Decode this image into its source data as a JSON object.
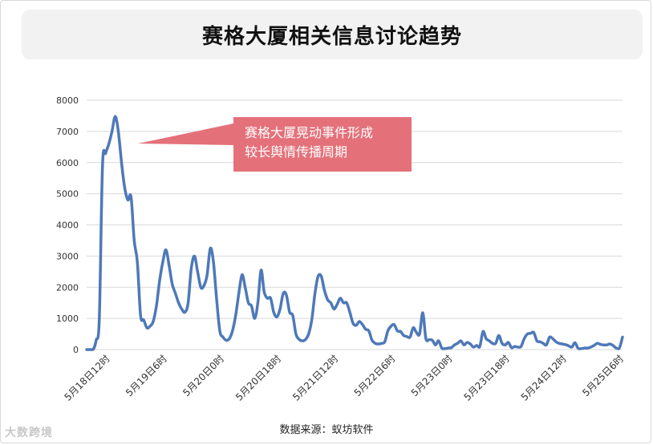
{
  "title": "赛格大厦相关信息讨论趋势",
  "callout": {
    "line1": "赛格大厦晃动事件形成",
    "line2": "较长舆情传播周期"
  },
  "source": "数据来源：蚁坊软件",
  "watermark": "大数跨境",
  "colors": {
    "line": "#4e79b8",
    "callout": "#e4717a",
    "grid": "#d9d9d9",
    "title_bg": "#f2f2f2"
  },
  "chart_data": {
    "type": "line",
    "title": "赛格大厦相关信息讨论趋势",
    "xlabel": "",
    "ylabel": "",
    "ylim": [
      0,
      8000
    ],
    "yticks": [
      0,
      1000,
      2000,
      3000,
      4000,
      5000,
      6000,
      7000,
      8000
    ],
    "grid": true,
    "legend": "none",
    "x_range_hours": "5月18日6时 – 5月25日21时",
    "xtick_labels": [
      "5月18日12时",
      "5月19日6时",
      "5月20日0时",
      "5月20日18时",
      "5月21日12时",
      "5月22日6时",
      "5月23日0时",
      "5月23日18时",
      "5月24日12时",
      "5月25日6时"
    ],
    "series": [
      {
        "values": [
          [
            0,
            0
          ],
          [
            2,
            0
          ],
          [
            3,
            300
          ],
          [
            4,
            1000
          ],
          [
            5,
            5900
          ],
          [
            6,
            6300
          ],
          [
            7,
            6600
          ],
          [
            8,
            7000
          ],
          [
            9,
            7480
          ],
          [
            10,
            7000
          ],
          [
            11,
            6000
          ],
          [
            12,
            5200
          ],
          [
            13,
            4800
          ],
          [
            14,
            4900
          ],
          [
            15,
            3500
          ],
          [
            16,
            2800
          ],
          [
            17,
            1100
          ],
          [
            18,
            950
          ],
          [
            19,
            700
          ],
          [
            20,
            750
          ],
          [
            21,
            900
          ],
          [
            22,
            1400
          ],
          [
            23,
            2200
          ],
          [
            24,
            2800
          ],
          [
            25,
            3200
          ],
          [
            26,
            2700
          ],
          [
            27,
            2100
          ],
          [
            28,
            1800
          ],
          [
            29,
            1500
          ],
          [
            30,
            1300
          ],
          [
            31,
            1200
          ],
          [
            32,
            1500
          ],
          [
            33,
            2600
          ],
          [
            34,
            3000
          ],
          [
            35,
            2500
          ],
          [
            36,
            2000
          ],
          [
            37,
            2050
          ],
          [
            38,
            2400
          ],
          [
            39,
            3250
          ],
          [
            40,
            2800
          ],
          [
            41,
            1600
          ],
          [
            42,
            600
          ],
          [
            43,
            400
          ],
          [
            44,
            300
          ],
          [
            45,
            350
          ],
          [
            46,
            600
          ],
          [
            47,
            1100
          ],
          [
            48,
            1800
          ],
          [
            49,
            2400
          ],
          [
            50,
            2000
          ],
          [
            51,
            1500
          ],
          [
            52,
            1400
          ],
          [
            53,
            1000
          ],
          [
            54,
            1500
          ],
          [
            55,
            2550
          ],
          [
            56,
            1850
          ],
          [
            57,
            1650
          ],
          [
            58,
            1650
          ],
          [
            59,
            1200
          ],
          [
            60,
            1050
          ],
          [
            61,
            1300
          ],
          [
            62,
            1800
          ],
          [
            63,
            1750
          ],
          [
            64,
            1200
          ],
          [
            65,
            1100
          ],
          [
            66,
            500
          ],
          [
            67,
            330
          ],
          [
            68,
            280
          ],
          [
            69,
            320
          ],
          [
            70,
            500
          ],
          [
            71,
            950
          ],
          [
            72,
            1800
          ],
          [
            73,
            2350
          ],
          [
            74,
            2350
          ],
          [
            75,
            1900
          ],
          [
            76,
            1600
          ],
          [
            77,
            1500
          ],
          [
            78,
            1300
          ],
          [
            79,
            1450
          ],
          [
            80,
            1650
          ],
          [
            81,
            1500
          ],
          [
            82,
            1500
          ],
          [
            83,
            1200
          ],
          [
            84,
            850
          ],
          [
            85,
            780
          ],
          [
            86,
            900
          ],
          [
            87,
            800
          ],
          [
            88,
            650
          ],
          [
            89,
            600
          ],
          [
            90,
            300
          ],
          [
            91,
            200
          ],
          [
            92,
            180
          ],
          [
            93,
            200
          ],
          [
            94,
            250
          ],
          [
            95,
            600
          ],
          [
            96,
            750
          ],
          [
            97,
            800
          ],
          [
            98,
            600
          ],
          [
            99,
            580
          ],
          [
            100,
            450
          ],
          [
            101,
            420
          ],
          [
            102,
            400
          ],
          [
            103,
            700
          ],
          [
            104,
            550
          ],
          [
            105,
            500
          ],
          [
            106,
            1180
          ],
          [
            107,
            350
          ],
          [
            108,
            320
          ],
          [
            109,
            300
          ],
          [
            110,
            150
          ],
          [
            111,
            280
          ],
          [
            112,
            50
          ],
          [
            113,
            30
          ],
          [
            114,
            50
          ],
          [
            115,
            60
          ],
          [
            116,
            150
          ],
          [
            117,
            200
          ],
          [
            118,
            280
          ],
          [
            119,
            150
          ],
          [
            120,
            230
          ],
          [
            121,
            180
          ],
          [
            122,
            80
          ],
          [
            123,
            130
          ],
          [
            124,
            100
          ],
          [
            125,
            580
          ],
          [
            126,
            350
          ],
          [
            127,
            280
          ],
          [
            128,
            200
          ],
          [
            129,
            200
          ],
          [
            130,
            450
          ],
          [
            131,
            200
          ],
          [
            132,
            150
          ],
          [
            133,
            230
          ],
          [
            134,
            60
          ],
          [
            135,
            100
          ],
          [
            136,
            80
          ],
          [
            137,
            100
          ],
          [
            138,
            350
          ],
          [
            139,
            500
          ],
          [
            140,
            520
          ],
          [
            141,
            550
          ],
          [
            142,
            280
          ],
          [
            143,
            250
          ],
          [
            144,
            200
          ],
          [
            145,
            150
          ],
          [
            146,
            400
          ],
          [
            147,
            350
          ],
          [
            148,
            250
          ],
          [
            149,
            200
          ],
          [
            150,
            180
          ],
          [
            151,
            160
          ],
          [
            152,
            120
          ],
          [
            153,
            80
          ],
          [
            154,
            220
          ],
          [
            155,
            40
          ],
          [
            156,
            30
          ],
          [
            157,
            50
          ],
          [
            158,
            50
          ],
          [
            159,
            80
          ],
          [
            160,
            130
          ],
          [
            161,
            200
          ],
          [
            162,
            170
          ],
          [
            163,
            150
          ],
          [
            164,
            150
          ],
          [
            165,
            180
          ],
          [
            166,
            130
          ],
          [
            167,
            50
          ],
          [
            168,
            50
          ],
          [
            169,
            400
          ]
        ]
      }
    ]
  }
}
